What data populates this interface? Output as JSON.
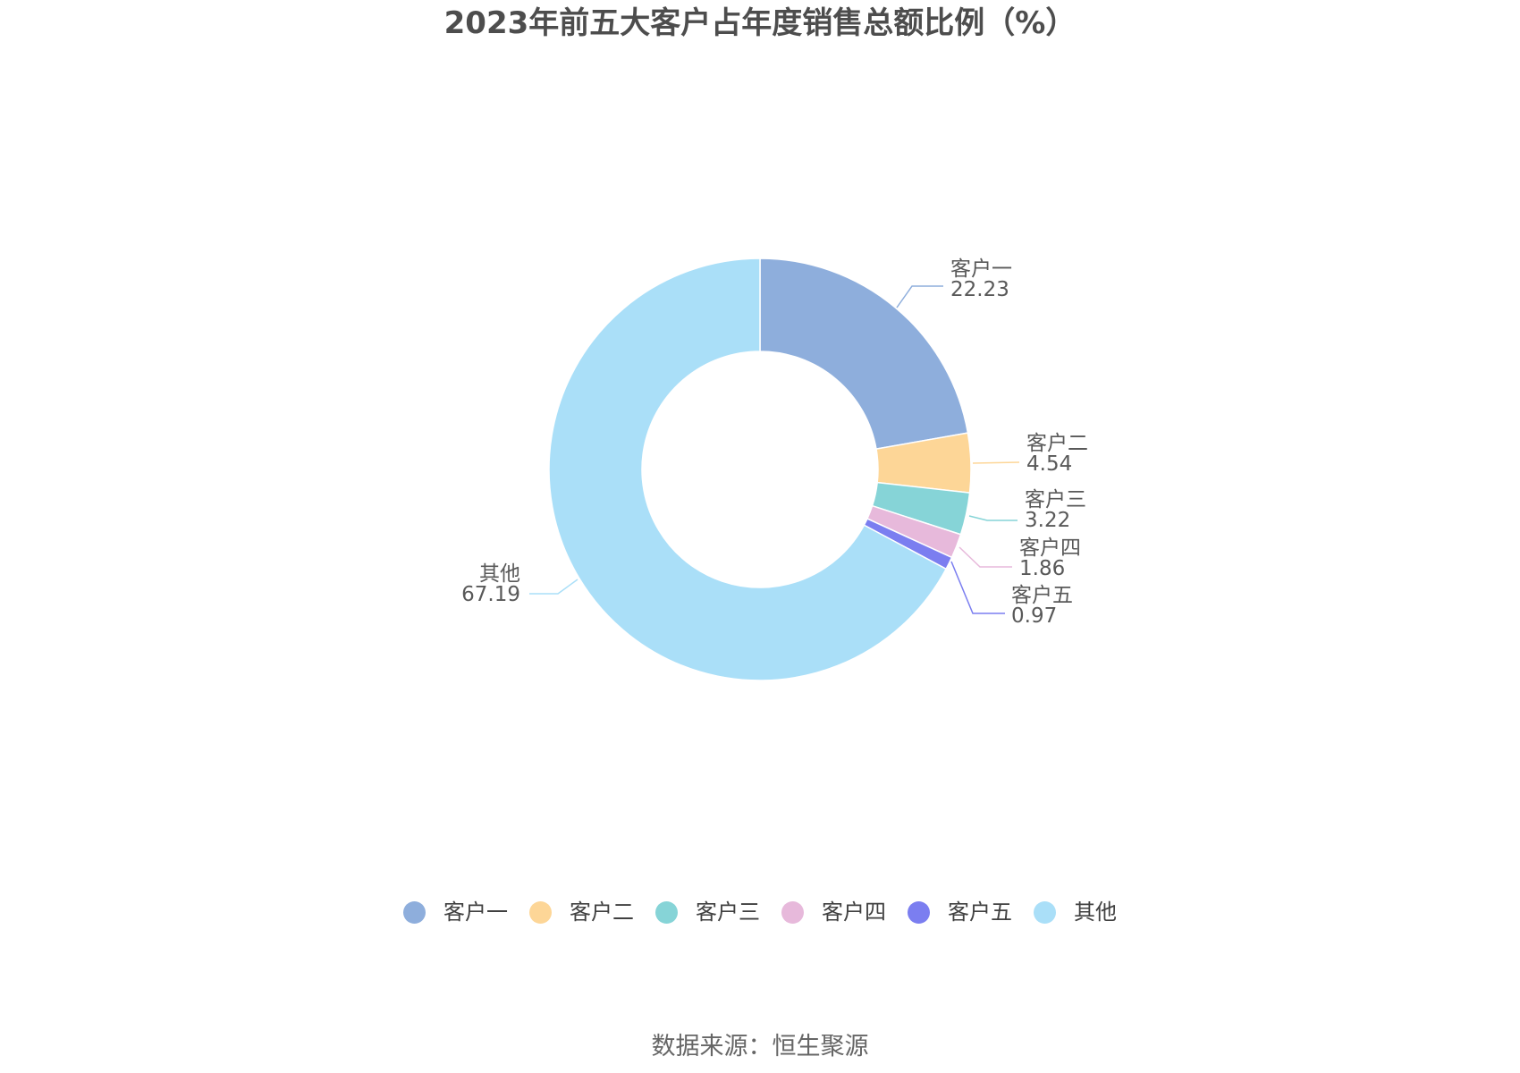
{
  "chart_data": {
    "type": "pie",
    "title": "2023年前五大客户占年度销售总额比例（%）",
    "categories": [
      "客户一",
      "客户二",
      "客户三",
      "客户四",
      "客户五",
      "其他"
    ],
    "values": [
      22.23,
      4.54,
      3.22,
      1.86,
      0.97,
      67.19
    ],
    "value_labels": [
      "22.23",
      "4.54",
      "3.22",
      "1.86",
      "0.97",
      "67.19"
    ],
    "colors": [
      "#8eaedc",
      "#fdd697",
      "#86d4d7",
      "#e7b9db",
      "#7b7ef0",
      "#aadff8"
    ],
    "style": "donut",
    "legend_position": "bottom"
  },
  "source": "数据来源：恒生聚源"
}
